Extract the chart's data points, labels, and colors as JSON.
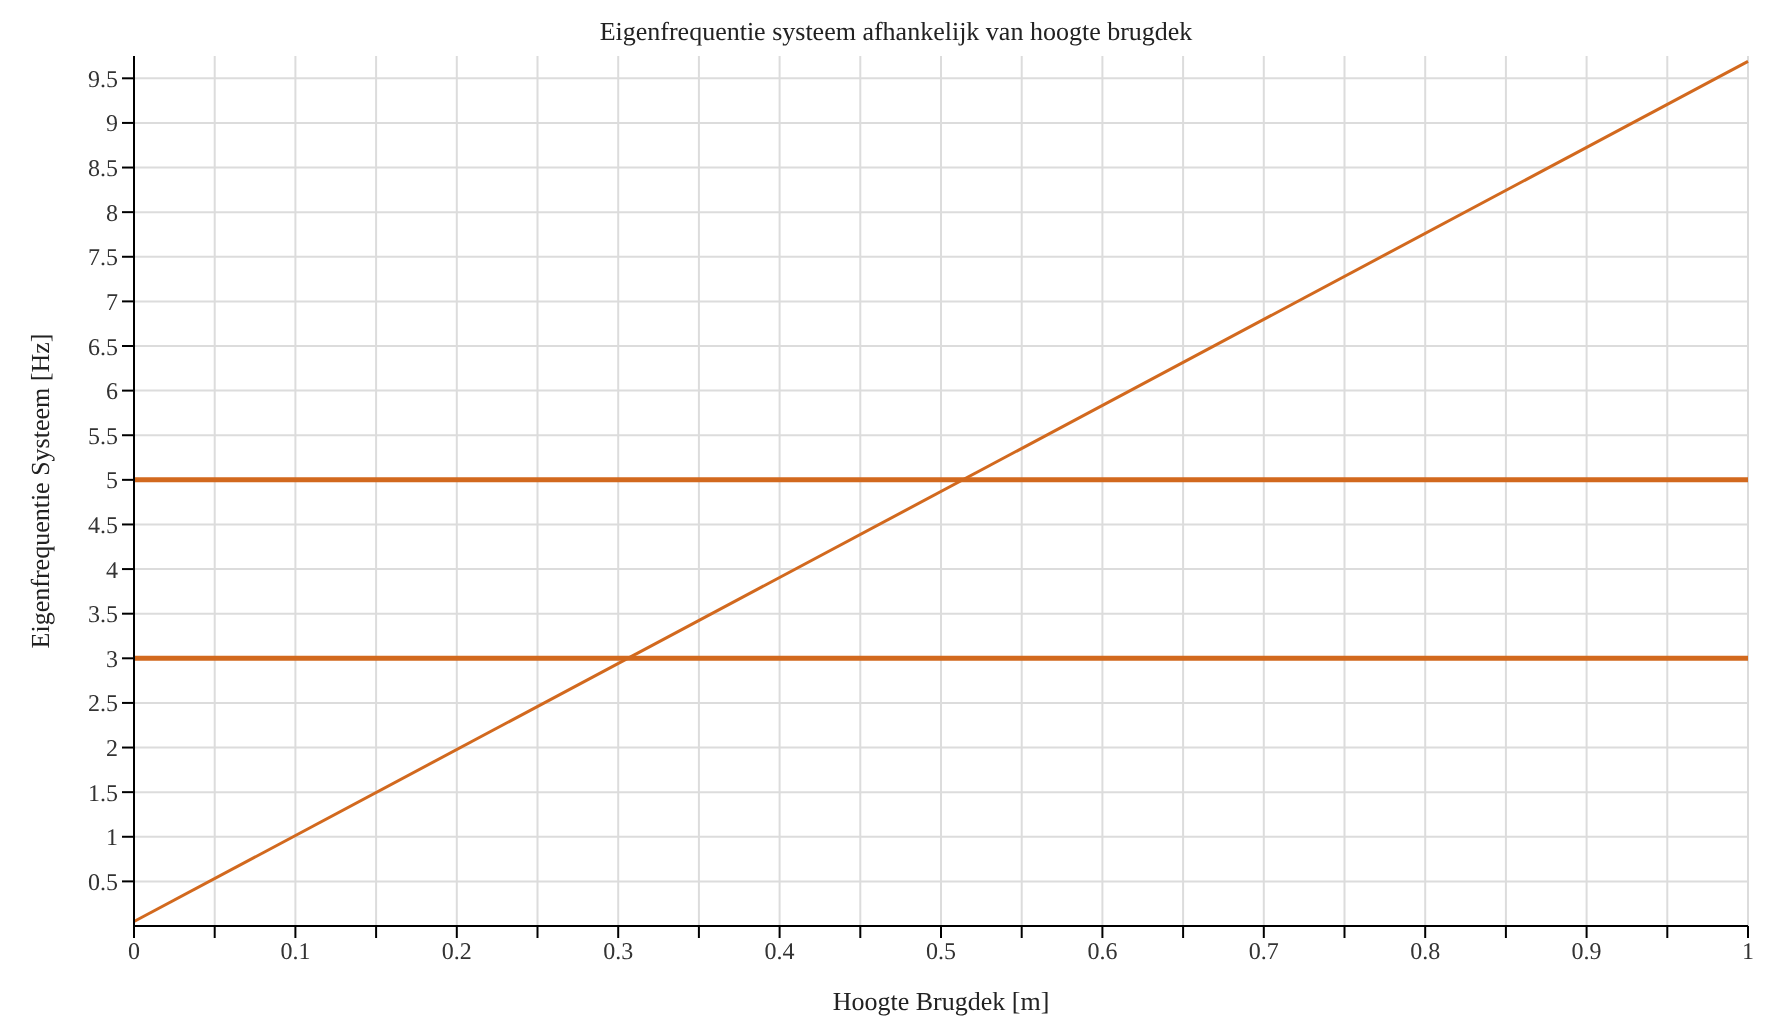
{
  "chart_data": {
    "type": "line",
    "title": "Eigenfrequentie systeem afhankelijk van hoogte brugdek",
    "xlabel": "Hoogte Brugdek [m]",
    "ylabel": "Eigenfrequentie Systeem [Hz]",
    "x": [
      0,
      1
    ],
    "series": [
      {
        "color": "#d2691e",
        "values": [
          0.05,
          9.69
        ]
      },
      {
        "color": "#d2691e",
        "values": [
          5,
          5
        ],
        "line_style": "solid"
      },
      {
        "color": "#d2691e",
        "values": [
          3,
          3
        ],
        "line_style": "solid"
      }
    ],
    "xlim": [
      0,
      1
    ],
    "xticks": [
      0,
      {
        "value": 0.05,
        "label": null
      },
      0.1,
      {
        "value": 0.15,
        "label": null
      },
      0.2,
      {
        "value": 0.25,
        "label": null
      },
      0.3,
      {
        "value": 0.35,
        "label": null
      },
      0.4,
      {
        "value": 0.45,
        "label": null
      },
      0.5,
      {
        "value": 0.55,
        "label": null
      },
      0.6,
      {
        "value": 0.65,
        "label": null
      },
      0.7,
      {
        "value": 0.75,
        "label": null
      },
      0.8,
      {
        "value": 0.85,
        "label": null
      },
      0.9,
      {
        "value": 0.95,
        "label": null
      },
      1
    ],
    "ylim": [
      0,
      9.75
    ],
    "yticks": [
      0.5,
      1,
      1.5,
      2,
      2.5,
      3,
      3.5,
      4,
      4.5,
      5,
      5.5,
      6,
      6.5,
      7,
      7.5,
      8,
      8.5,
      9,
      9.5
    ],
    "grid": true,
    "marker": "none",
    "line_style": "solid"
  }
}
